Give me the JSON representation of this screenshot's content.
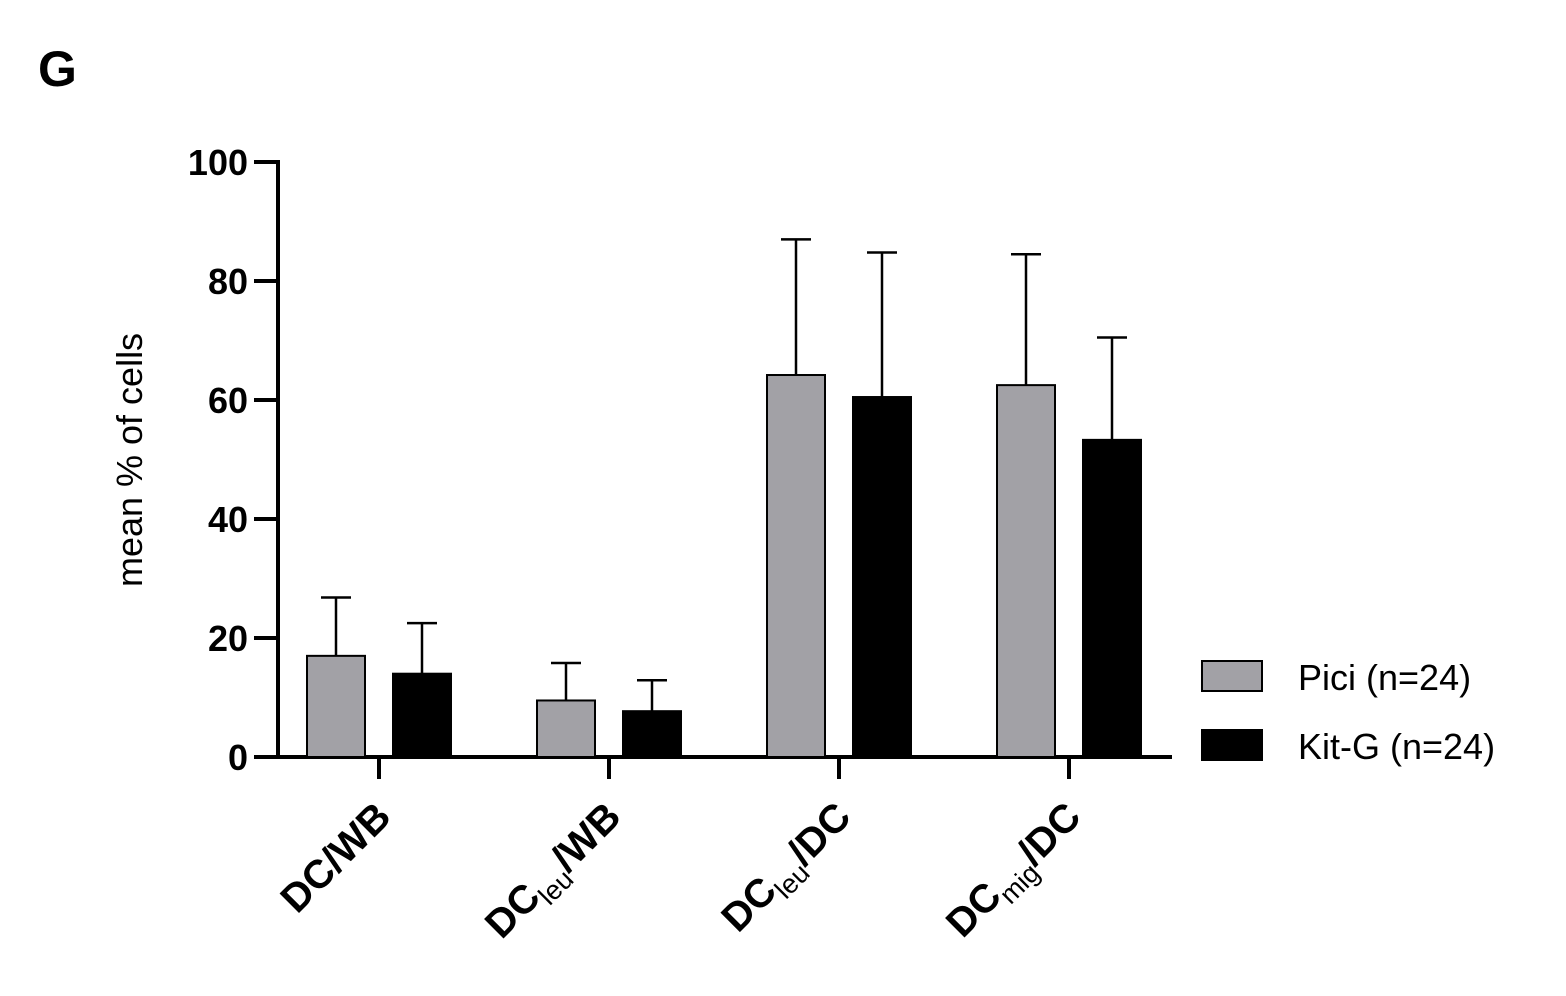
{
  "panel_label": "G",
  "chart_data": {
    "type": "bar",
    "title": "",
    "xlabel": "",
    "ylabel": "mean % of cells",
    "ylim": [
      0,
      100
    ],
    "yticks": [
      0,
      20,
      40,
      60,
      80,
      100
    ],
    "categories": [
      {
        "main": "DC",
        "sub": "",
        "tail": "/WB"
      },
      {
        "main": "DC",
        "sub": "leu",
        "tail": "/WB"
      },
      {
        "main": "DC",
        "sub": "leu",
        "tail": "/DC"
      },
      {
        "main": "DC",
        "sub": "mig",
        "tail": "/DC"
      }
    ],
    "series": [
      {
        "name": "Pici (n=24)",
        "color": "#a2a1a6",
        "values": [
          17,
          9.5,
          64.2,
          62.5
        ],
        "errors": [
          9.8,
          6.3,
          22.8,
          22
        ]
      },
      {
        "name": "Kit-G (n=24)",
        "color": "#000000",
        "values": [
          14,
          7.7,
          60.5,
          53.3
        ],
        "errors": [
          8.5,
          5.2,
          24.3,
          17.2
        ]
      }
    ],
    "legend_position": "right",
    "grid": false
  }
}
